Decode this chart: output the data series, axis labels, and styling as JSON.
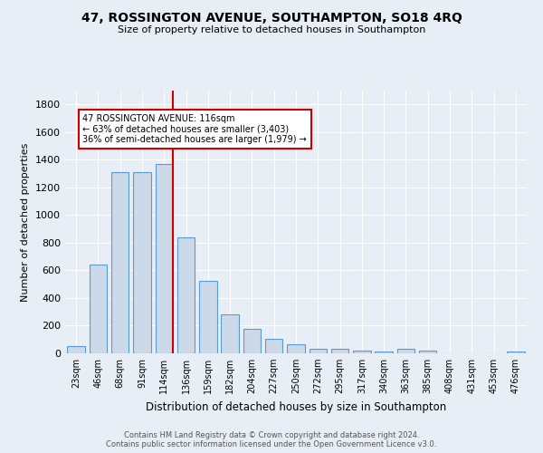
{
  "title": "47, ROSSINGTON AVENUE, SOUTHAMPTON, SO18 4RQ",
  "subtitle": "Size of property relative to detached houses in Southampton",
  "xlabel": "Distribution of detached houses by size in Southampton",
  "ylabel": "Number of detached properties",
  "categories": [
    "23sqm",
    "46sqm",
    "68sqm",
    "91sqm",
    "114sqm",
    "136sqm",
    "159sqm",
    "182sqm",
    "204sqm",
    "227sqm",
    "250sqm",
    "272sqm",
    "295sqm",
    "317sqm",
    "340sqm",
    "363sqm",
    "385sqm",
    "408sqm",
    "431sqm",
    "453sqm",
    "476sqm"
  ],
  "values": [
    55,
    640,
    1310,
    1310,
    1370,
    840,
    525,
    280,
    175,
    105,
    65,
    35,
    35,
    20,
    10,
    30,
    20,
    0,
    0,
    0,
    10
  ],
  "bar_color": "#ccd9e8",
  "bar_edge_color": "#5b9bd5",
  "red_line_index": 4,
  "annotation_line1": "47 ROSSINGTON AVENUE: 116sqm",
  "annotation_line2": "← 63% of detached houses are smaller (3,403)",
  "annotation_line3": "36% of semi-detached houses are larger (1,979) →",
  "annotation_box_color": "#ffffff",
  "annotation_box_edge_color": "#cc0000",
  "ylim": [
    0,
    1900
  ],
  "yticks": [
    0,
    200,
    400,
    600,
    800,
    1000,
    1200,
    1400,
    1600,
    1800
  ],
  "background_color": "#e8eef5",
  "grid_color": "#ffffff",
  "footer1": "Contains HM Land Registry data © Crown copyright and database right 2024.",
  "footer2": "Contains public sector information licensed under the Open Government Licence v3.0."
}
